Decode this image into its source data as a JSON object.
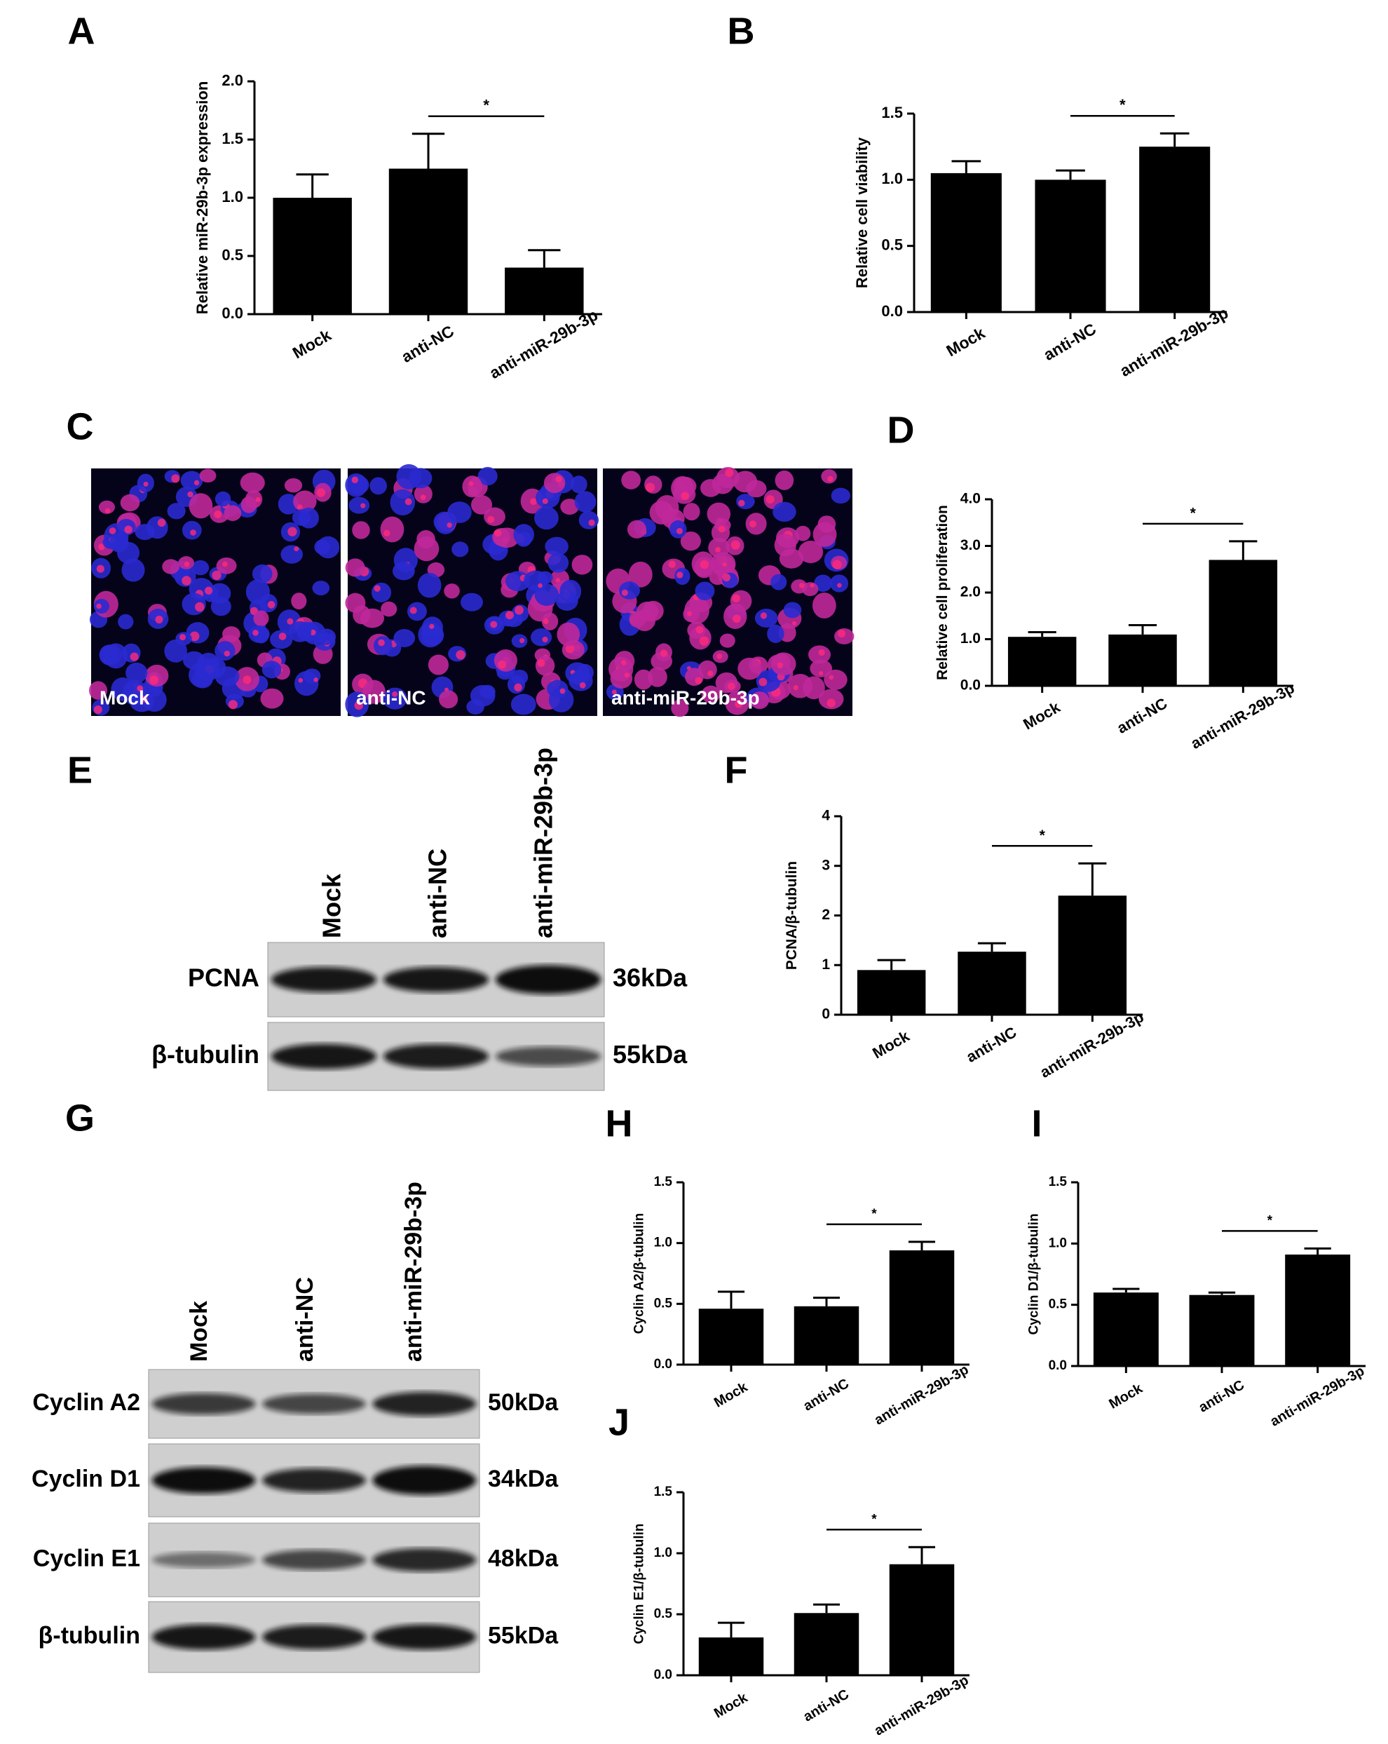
{
  "chart_data": [
    {
      "type": "bar",
      "panel": "A",
      "ylabel": "Relative  miR-29b-3p expression",
      "categories": [
        "Mock",
        "anti-NC",
        "anti-miR-29b-3p"
      ],
      "values": [
        1.0,
        1.25,
        0.4
      ],
      "errors": [
        0.2,
        0.3,
        0.15
      ],
      "color": "#000000",
      "ylim": [
        0,
        2
      ],
      "yticks": [
        {
          "value": 0,
          "label": "0.0"
        },
        {
          "value": 0.5,
          "label": "0.5"
        },
        {
          "value": 1,
          "label": "1.0"
        },
        {
          "value": 1.5,
          "label": "1.5"
        },
        {
          "value": 2,
          "label": "2.0"
        }
      ],
      "significance": {
        "label": "*",
        "groups": [
          1,
          2
        ]
      }
    },
    {
      "type": "bar",
      "panel": "B",
      "ylabel": "Relative cell viability",
      "categories": [
        "Mock",
        "anti-NC",
        "anti-miR-29b-3p"
      ],
      "values": [
        1.05,
        1.0,
        1.25
      ],
      "errors": [
        0.09,
        0.07,
        0.1
      ],
      "color": "#000000",
      "ylim": [
        0,
        1.5
      ],
      "yticks": [
        {
          "value": 0,
          "label": "0.0"
        },
        {
          "value": 0.5,
          "label": "0.5"
        },
        {
          "value": 1,
          "label": "1.0"
        },
        {
          "value": 1.5,
          "label": "1.5"
        }
      ],
      "significance": {
        "label": "*",
        "groups": [
          1,
          2
        ]
      }
    },
    {
      "type": "bar",
      "panel": "D",
      "ylabel": "Relative cell proliferation",
      "categories": [
        "Mock",
        "anti-NC",
        "anti-miR-29b-3p"
      ],
      "values": [
        1.05,
        1.1,
        2.7
      ],
      "errors": [
        0.1,
        0.2,
        0.4
      ],
      "color": "#000000",
      "ylim": [
        0,
        4
      ],
      "yticks": [
        {
          "value": 0,
          "label": "0.0"
        },
        {
          "value": 1,
          "label": "1.0"
        },
        {
          "value": 2,
          "label": "2.0"
        },
        {
          "value": 3,
          "label": "3.0"
        },
        {
          "value": 4,
          "label": "4.0"
        }
      ],
      "significance": {
        "label": "*",
        "groups": [
          1,
          2
        ]
      }
    },
    {
      "type": "bar",
      "panel": "F",
      "ylabel": "PCNA/β-tubulin",
      "categories": [
        "Mock",
        "anti-NC",
        "anti-miR-29b-3p"
      ],
      "values": [
        0.9,
        1.27,
        2.4
      ],
      "errors": [
        0.2,
        0.17,
        0.65
      ],
      "color": "#000000",
      "ylim": [
        0,
        4
      ],
      "yticks": [
        0,
        1,
        2,
        3,
        4
      ],
      "significance": {
        "label": "*",
        "groups": [
          1,
          2
        ]
      }
    },
    {
      "type": "bar",
      "panel": "H",
      "ylabel": "Cyclin A2/β-tubulin",
      "categories": [
        "Mock",
        "anti-NC",
        "anti-miR-29b-3p"
      ],
      "values": [
        0.46,
        0.48,
        0.94
      ],
      "errors": [
        0.14,
        0.07,
        0.07
      ],
      "color": "#000000",
      "ylim": [
        0,
        1.5
      ],
      "yticks": [
        {
          "value": 0,
          "label": "0.0"
        },
        {
          "value": 0.5,
          "label": "0.5"
        },
        {
          "value": 1,
          "label": "1.0"
        },
        {
          "value": 1.5,
          "label": "1.5"
        }
      ],
      "significance": {
        "label": "*",
        "groups": [
          1,
          2
        ]
      }
    },
    {
      "type": "bar",
      "panel": "I",
      "ylabel": "Cyclin D1/β-tubulin",
      "categories": [
        "Mock",
        "anti-NC",
        "anti-miR-29b-3p"
      ],
      "values": [
        0.6,
        0.58,
        0.91
      ],
      "errors": [
        0.03,
        0.02,
        0.05
      ],
      "color": "#000000",
      "ylim": [
        0,
        1.5
      ],
      "yticks": [
        {
          "value": 0,
          "label": "0.0"
        },
        {
          "value": 0.5,
          "label": "0.5"
        },
        {
          "value": 1,
          "label": "1.0"
        },
        {
          "value": 1.5,
          "label": "1.5"
        }
      ],
      "significance": {
        "label": "*",
        "groups": [
          1,
          2
        ]
      }
    },
    {
      "type": "bar",
      "panel": "J",
      "ylabel": "Cyclin E1/β-tubulin",
      "categories": [
        "Mock",
        "anti-NC",
        "anti-miR-29b-3p"
      ],
      "values": [
        0.31,
        0.51,
        0.91
      ],
      "errors": [
        0.12,
        0.07,
        0.14
      ],
      "color": "#000000",
      "ylim": [
        0,
        1.5
      ],
      "yticks": [
        {
          "value": 0,
          "label": "0.0"
        },
        {
          "value": 0.5,
          "label": "0.5"
        },
        {
          "value": 1,
          "label": "1.0"
        },
        {
          "value": 1.5,
          "label": "1.5"
        }
      ],
      "significance": {
        "label": "*",
        "groups": [
          1,
          2
        ]
      }
    }
  ],
  "microscopy": {
    "panel": "C",
    "labels": [
      "Mock",
      "anti-NC",
      "anti-miR-29b-3p"
    ]
  },
  "blots": [
    {
      "panel": "E",
      "lanes": [
        "Mock",
        "anti-NC",
        "anti-miR-29b-3p"
      ],
      "rows": [
        {
          "label": "PCNA",
          "size": "36kDa"
        },
        {
          "label": "β-tubulin",
          "size": "55kDa"
        }
      ]
    },
    {
      "panel": "G",
      "lanes": [
        "Mock",
        "anti-NC",
        "anti-miR-29b-3p"
      ],
      "rows": [
        {
          "label": "Cyclin A2",
          "size": "50kDa"
        },
        {
          "label": "Cyclin D1",
          "size": "34kDa"
        },
        {
          "label": "Cyclin E1",
          "size": "48kDa"
        },
        {
          "label": "β-tubulin",
          "size": "55kDa"
        }
      ]
    }
  ]
}
